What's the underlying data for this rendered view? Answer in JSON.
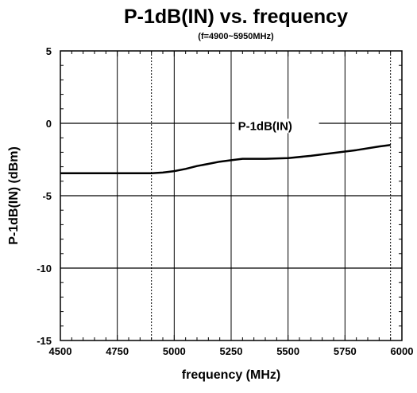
{
  "chart_data": {
    "type": "line",
    "title": "P-1dB(IN) vs. frequency",
    "subtitle": "(f=4900~5950MHz)",
    "xlabel": "frequency (MHz)",
    "ylabel": "P-1dB(IN) (dBm)",
    "xlim": [
      4500,
      6000
    ],
    "ylim": [
      -15,
      5
    ],
    "x_ticks": [
      4500,
      4750,
      5000,
      5250,
      5500,
      5750,
      6000
    ],
    "x_tick_labels": [
      "4500",
      "4750",
      "5000",
      "5250",
      "5500",
      "5750",
      "6000"
    ],
    "y_ticks": [
      5,
      0,
      -5,
      -10,
      -15
    ],
    "y_tick_labels": [
      "5",
      "0",
      "-5",
      "-10",
      "-15"
    ],
    "grid": true,
    "band_markers_x": [
      4900,
      5950
    ],
    "series": [
      {
        "name": "P-1dB(IN)",
        "x": [
          4500,
          4700,
          4900,
          4950,
          5000,
          5050,
          5100,
          5150,
          5200,
          5250,
          5300,
          5400,
          5500,
          5600,
          5700,
          5800,
          5900,
          5950
        ],
        "y": [
          -3.45,
          -3.45,
          -3.45,
          -3.4,
          -3.3,
          -3.15,
          -2.95,
          -2.8,
          -2.65,
          -2.55,
          -2.45,
          -2.45,
          -2.4,
          -2.25,
          -2.05,
          -1.85,
          -1.6,
          -1.5
        ]
      }
    ],
    "annotations": [
      {
        "text": "P-1dB(IN)",
        "x": 5280,
        "y": -0.4
      }
    ]
  }
}
